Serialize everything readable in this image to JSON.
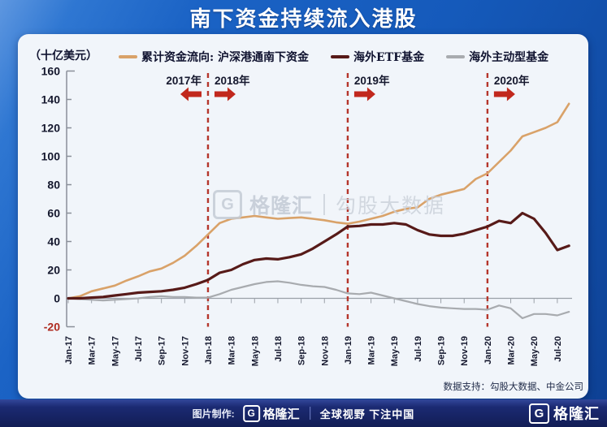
{
  "title": "南下资金持续流入港股",
  "watermark": {
    "logo_letter": "G",
    "brand": "格隆汇",
    "sub": "勾股大数据"
  },
  "data_note": "数据支持：勾股大数据、中金公司",
  "footer": {
    "made_by_label": "图片制作:",
    "logo_letter": "G",
    "brand": "格隆汇",
    "slogan": "全球视野 下注中国"
  },
  "chart_data": {
    "type": "line",
    "title": "南下资金持续流入港股",
    "unit_label": "（十亿美元）",
    "ylim": [
      -20,
      160
    ],
    "ytick_step": 20,
    "negative_tick_color": "#af2b20",
    "grid": false,
    "legend_position": "top",
    "x_tick_labels": [
      "Jan-17",
      "Mar-17",
      "May-17",
      "Jul-17",
      "Sep-17",
      "Nov-17",
      "Jan-18",
      "Mar-18",
      "May-18",
      "Jul-18",
      "Sep-18",
      "Nov-18",
      "Jan-19",
      "Mar-19",
      "May-19",
      "Jul-19",
      "Sep-19",
      "Nov-19",
      "Jan-20",
      "Mar-20",
      "May-20",
      "Jul-20"
    ],
    "x_monthly_start": "Jan-17",
    "x_monthly_end": "Aug-20",
    "series": [
      {
        "name": "累计资金流向: 沪深港通南下资金",
        "color": "#d9a269",
        "values": [
          0,
          1.5,
          5,
          7,
          9,
          12.5,
          15.5,
          19,
          21,
          25,
          30,
          37,
          45,
          53,
          56,
          57,
          58,
          57,
          56,
          56.5,
          57,
          56,
          55,
          53.5,
          52.5,
          54,
          56,
          58,
          61,
          63,
          64,
          70,
          73,
          75,
          77,
          84,
          88,
          96,
          104,
          114,
          117,
          120,
          124,
          137
        ]
      },
      {
        "name": "海外ETF基金",
        "color": "#571a18",
        "values": [
          0,
          0,
          0.5,
          1,
          2,
          3,
          4,
          4.5,
          5,
          6,
          7.5,
          10,
          13,
          18,
          20,
          24,
          27,
          28,
          27.5,
          29,
          31,
          35,
          40,
          45,
          50.5,
          51,
          52,
          52,
          53,
          52,
          48,
          45,
          44,
          44,
          45.5,
          48,
          50.5,
          54.5,
          53,
          60,
          56,
          46,
          34,
          37
        ]
      },
      {
        "name": "海外主动型基金",
        "color": "#a8abaf",
        "values": [
          0,
          -0.5,
          -1,
          -1.5,
          -1,
          -0.5,
          0,
          1,
          1.5,
          1,
          1,
          0.5,
          0.5,
          3,
          6,
          8,
          10,
          11.5,
          12,
          11,
          9.5,
          8.5,
          8,
          6,
          3.5,
          3,
          4,
          2,
          0,
          -2,
          -4,
          -5.5,
          -6.5,
          -7,
          -7.5,
          -7.5,
          -8,
          -5,
          -7,
          -14,
          -11,
          -11,
          -12,
          -9.5
        ]
      }
    ],
    "dividers": {
      "color": "#b5362c",
      "month_indices": [
        12,
        24,
        36
      ]
    },
    "year_markers": [
      {
        "text": "2017年",
        "line": 12,
        "side": "left"
      },
      {
        "text": "2018年",
        "line": 12,
        "side": "right"
      },
      {
        "text": "2019年",
        "line": 24,
        "side": "right"
      },
      {
        "text": "2020年",
        "line": 36,
        "side": "right"
      }
    ],
    "arrow_color": "#c1281d"
  }
}
